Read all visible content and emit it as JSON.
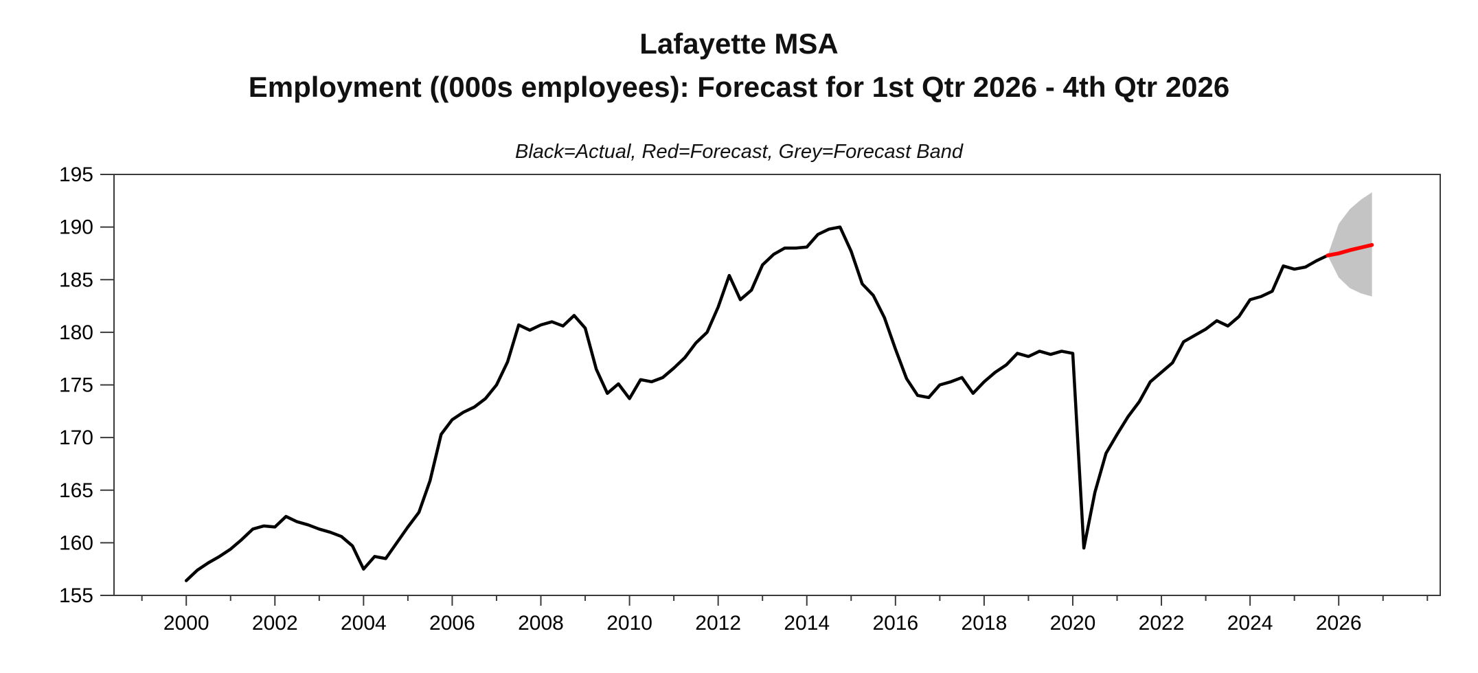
{
  "title": {
    "line1": "Lafayette MSA",
    "line2": "Employment ((000s employees): Forecast for 1st Qtr 2026 - 4th Qtr 2026"
  },
  "subtitle": "Black=Actual, Red=Forecast, Grey=Forecast Band",
  "colors": {
    "actual": "#000000",
    "forecast": "#ff0000",
    "band": "#c4c4c4",
    "axis": "#3a3a3a",
    "text": "#000000",
    "background": "#ffffff"
  },
  "chart_data": {
    "type": "line",
    "title": "Lafayette MSA — Employment ((000s employees): Forecast for 1st Qtr 2026 - 4th Qtr 2026",
    "legend_note": "Black=Actual, Red=Forecast, Grey=Forecast Band",
    "xlabel": "",
    "ylabel": "",
    "ylim": [
      155,
      195
    ],
    "xlim": [
      1998.37,
      2028.29
    ],
    "grid": false,
    "y_ticks": [
      155,
      160,
      165,
      170,
      175,
      180,
      185,
      190,
      195
    ],
    "x_major_ticks": [
      2000,
      2002,
      2004,
      2006,
      2008,
      2010,
      2012,
      2014,
      2016,
      2018,
      2020,
      2022,
      2024,
      2026
    ],
    "x_minor_ticks": [
      1999,
      2001,
      2003,
      2005,
      2007,
      2009,
      2011,
      2013,
      2015,
      2017,
      2019,
      2021,
      2023,
      2025,
      2027,
      2028
    ],
    "frequency": "quarterly",
    "series": [
      {
        "name": "Actual",
        "color": "#000000",
        "x_start": 2000.0,
        "x_step": 0.25,
        "start_label": "2000 Q1",
        "end_label": "2025 Q4",
        "values": [
          156.4,
          157.4,
          158.1,
          158.7,
          159.4,
          160.3,
          161.3,
          161.6,
          161.5,
          162.5,
          162.0,
          161.7,
          161.3,
          161.0,
          160.6,
          159.7,
          157.5,
          158.7,
          158.5,
          160.0,
          161.5,
          162.9,
          165.9,
          170.3,
          171.7,
          172.4,
          172.9,
          173.7,
          175.0,
          177.2,
          180.7,
          180.2,
          180.7,
          181.0,
          180.6,
          181.6,
          180.4,
          176.5,
          174.2,
          175.1,
          173.7,
          175.5,
          175.3,
          175.7,
          176.6,
          177.6,
          179.0,
          180.0,
          182.4,
          185.4,
          183.1,
          184.0,
          186.4,
          187.4,
          188.0,
          188.0,
          188.1,
          189.3,
          189.8,
          190.0,
          187.7,
          184.6,
          183.5,
          181.4,
          178.4,
          175.6,
          174.0,
          173.8,
          175.0,
          175.3,
          175.7,
          174.2,
          175.3,
          176.2,
          176.9,
          178.0,
          177.7,
          178.2,
          177.9,
          178.2,
          178.0,
          159.5,
          164.8,
          168.5,
          170.3,
          172.0,
          173.4,
          175.3,
          176.2,
          177.1,
          179.1,
          179.7,
          180.3,
          181.1,
          180.6,
          181.5,
          183.1,
          183.4,
          183.9,
          186.3,
          186.0,
          186.2,
          186.8,
          187.3
        ]
      },
      {
        "name": "Forecast",
        "color": "#ff0000",
        "x_start": 2025.75,
        "x_step": 0.25,
        "start_label": "2025 Q4 (junction)",
        "end_label": "2026 Q4",
        "values": [
          187.3,
          187.5,
          187.8,
          188.05,
          188.3
        ]
      },
      {
        "name": "Forecast Band",
        "color": "#c4c4c4",
        "x": [
          2025.75,
          2026.0,
          2026.25,
          2026.5,
          2026.75
        ],
        "upper": [
          187.3,
          190.3,
          191.7,
          192.6,
          193.3
        ],
        "lower": [
          187.3,
          185.2,
          184.2,
          183.7,
          183.4
        ]
      }
    ]
  }
}
